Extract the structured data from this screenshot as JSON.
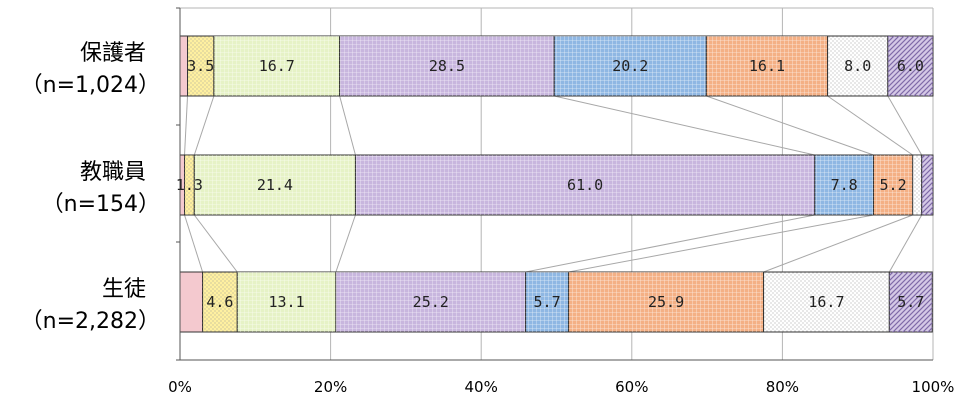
{
  "chart_data": {
    "type": "bar",
    "orientation": "horizontal",
    "stacked": true,
    "percent": true,
    "categories": [
      {
        "name": "保護者",
        "n": "（n=1,024）"
      },
      {
        "name": "教職員",
        "n": "（n=154）"
      },
      {
        "name": "生徒",
        "n": "（n=2,282）"
      }
    ],
    "segments": [
      {
        "values": [
          1.0,
          0.6,
          3.0
        ],
        "labels": [
          "",
          "",
          ""
        ],
        "color": "#f4c9cf",
        "pattern": "none"
      },
      {
        "values": [
          3.5,
          1.3,
          4.6
        ],
        "labels": [
          "3.5",
          "1.3",
          "4.6"
        ],
        "color": "#fff0a0",
        "pattern": "dots"
      },
      {
        "values": [
          16.7,
          21.4,
          13.1
        ],
        "labels": [
          "16.7",
          "21.4",
          "13.1"
        ],
        "color": "#e6f2c6",
        "pattern": "grid"
      },
      {
        "values": [
          28.5,
          61.0,
          25.2
        ],
        "labels": [
          "28.5",
          "61.0",
          "25.2"
        ],
        "color": "#c8b6de",
        "pattern": "grid"
      },
      {
        "values": [
          20.2,
          7.8,
          5.7
        ],
        "labels": [
          "20.2",
          "7.8",
          "5.7"
        ],
        "color": "#8fb7e3",
        "pattern": "grid"
      },
      {
        "values": [
          16.1,
          5.2,
          25.9
        ],
        "labels": [
          "16.1",
          "5.2",
          "25.9"
        ],
        "color": "#f4b085",
        "pattern": "grid"
      },
      {
        "values": [
          8.0,
          1.2,
          16.7
        ],
        "labels": [
          "8.0",
          "",
          "16.7"
        ],
        "color": "#ffffff",
        "pattern": "dots"
      },
      {
        "values": [
          6.0,
          1.5,
          5.7
        ],
        "labels": [
          "6.0",
          "",
          "5.7"
        ],
        "color": "#d4c8e6",
        "pattern": "diag"
      }
    ],
    "x_ticks": [
      "0%",
      "20%",
      "40%",
      "60%",
      "80%",
      "100%"
    ],
    "xlim": [
      0,
      100
    ],
    "grid": true,
    "connector_lines": true
  }
}
